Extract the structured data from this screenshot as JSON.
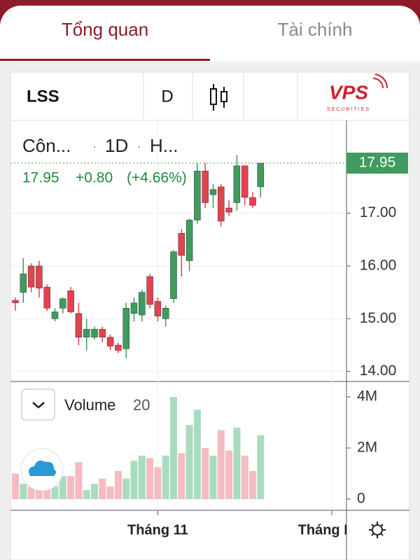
{
  "tabs": [
    "Tổng quan",
    "Tài chính"
  ],
  "toolbar": {
    "symbol": "LSS",
    "interval": "D"
  },
  "logo": {
    "name": "VPS",
    "sub": "SECURITIES"
  },
  "chart_data": {
    "type": "candlestick",
    "legend": {
      "name": "Côn...",
      "interval": "1D",
      "exchange": "H...",
      "change": "+0.80",
      "change_pct": "(+4.66%)"
    },
    "last_price": 17.95,
    "last_price_label": "17.95",
    "up_color": "#3f9b5e",
    "down_color": "#e2434d",
    "volume_up_color": "#a9dcbf",
    "volume_down_color": "#f5bac2",
    "categories": [
      null,
      null,
      null,
      null,
      null,
      null,
      null,
      null,
      null,
      null,
      null,
      null,
      null,
      null,
      null,
      null,
      null,
      null,
      "Tháng 11",
      null,
      null,
      null,
      null,
      null,
      null,
      null,
      null,
      null,
      null,
      null,
      null,
      null,
      null,
      null,
      null,
      null,
      null,
      null,
      null,
      null,
      "Tháng Mư",
      null
    ],
    "open": [
      15.35,
      15.5,
      16.0,
      16.0,
      15.6,
      15.0,
      15.2,
      15.53,
      15.1,
      14.65,
      14.65,
      14.8,
      14.65,
      14.5,
      14.43,
      15.1,
      15.07,
      15.8,
      15.33,
      15.0,
      15.38,
      16.62,
      16.1,
      16.87,
      17.8,
      17.35,
      17.5,
      17.1,
      17.2,
      17.9,
      17.3,
      17.5,
      null,
      null,
      null,
      null,
      null,
      null,
      null,
      null,
      null,
      null
    ],
    "high": [
      15.4,
      16.15,
      16.05,
      16.1,
      15.65,
      15.2,
      15.4,
      15.6,
      15.3,
      15.0,
      14.85,
      14.85,
      14.7,
      14.55,
      15.3,
      15.4,
      15.55,
      15.85,
      15.4,
      15.25,
      16.3,
      16.7,
      16.9,
      17.95,
      17.95,
      17.55,
      17.55,
      17.25,
      18.1,
      17.9,
      17.4,
      17.95,
      null,
      null,
      null,
      null,
      null,
      null,
      null,
      null,
      null,
      null
    ],
    "low": [
      15.15,
      15.3,
      15.5,
      15.4,
      15.15,
      14.95,
      15.1,
      15.1,
      14.5,
      14.4,
      14.6,
      14.55,
      14.4,
      14.35,
      14.25,
      14.95,
      14.95,
      15.2,
      14.95,
      14.85,
      15.3,
      15.8,
      15.9,
      16.8,
      17.1,
      17.1,
      16.75,
      16.95,
      17.05,
      17.15,
      17.1,
      17.3,
      null,
      null,
      null,
      null,
      null,
      null,
      null,
      null,
      null,
      null
    ],
    "close": [
      15.3,
      15.85,
      15.6,
      15.58,
      15.2,
      15.13,
      15.38,
      15.13,
      14.65,
      14.8,
      14.8,
      14.65,
      14.48,
      14.4,
      15.2,
      15.3,
      15.5,
      15.27,
      15.05,
      15.2,
      16.27,
      16.2,
      16.87,
      17.8,
      17.2,
      17.45,
      16.85,
      17.02,
      17.9,
      17.3,
      17.15,
      17.95,
      null,
      null,
      null,
      null,
      null,
      null,
      null,
      null,
      null,
      null
    ],
    "ylim": [
      13.81,
      18.76
    ],
    "yticks": [
      {
        "value": 14,
        "label": "14.00"
      },
      {
        "value": 15,
        "label": "15.00"
      },
      {
        "value": 16,
        "label": "16.00"
      },
      {
        "value": 17,
        "label": "17.00"
      }
    ],
    "volume_title": "Volume",
    "volume_period": 20,
    "volume": [
      1000000,
      600000,
      900000,
      600000,
      800000,
      500000,
      900000,
      900000,
      1450000,
      350000,
      600000,
      800000,
      500000,
      1100000,
      800000,
      1500000,
      1700000,
      1600000,
      1250000,
      1700000,
      4000000,
      1800000,
      2900000,
      3500000,
      2000000,
      1700000,
      2700000,
      1900000,
      2800000,
      1700000,
      1100000,
      2500000,
      null,
      null,
      null,
      null,
      null,
      null,
      null,
      null,
      null,
      null
    ],
    "volume_ylim": [
      0,
      4520000
    ],
    "volume_ticks": [
      0,
      {
        "value": 2000000,
        "label": "2M"
      },
      {
        "value": 4000000,
        "label": "4M"
      }
    ]
  }
}
